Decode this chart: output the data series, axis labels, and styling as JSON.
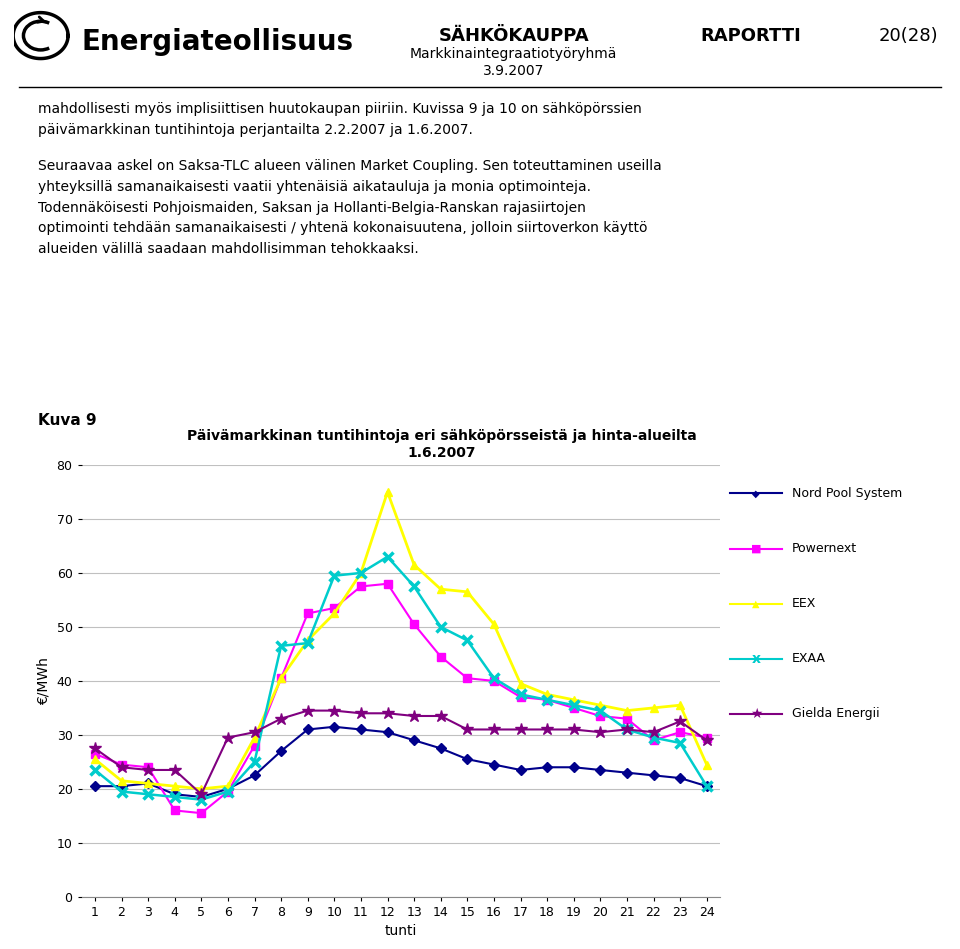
{
  "title_line1": "Päivämarkkinan tuntihintoja eri sähköpörsseistä ja hinta-alueilta",
  "title_line2": "1.6.2007",
  "xlabel": "tunti",
  "ylabel": "€/MWh",
  "ylim": [
    0,
    80
  ],
  "yticks": [
    0,
    10,
    20,
    30,
    40,
    50,
    60,
    70,
    80
  ],
  "xticks": [
    1,
    2,
    3,
    4,
    5,
    6,
    7,
    8,
    9,
    10,
    11,
    12,
    13,
    14,
    15,
    16,
    17,
    18,
    19,
    20,
    21,
    22,
    23,
    24
  ],
  "series": {
    "Nord Pool System": {
      "color": "#00008B",
      "marker": "D",
      "markersize": 5,
      "linewidth": 1.5,
      "values": [
        20.5,
        20.5,
        21.0,
        19.0,
        18.5,
        20.0,
        22.5,
        27.0,
        31.0,
        31.5,
        31.0,
        30.5,
        29.0,
        27.5,
        25.5,
        24.5,
        23.5,
        24.0,
        24.0,
        23.5,
        23.0,
        22.5,
        22.0,
        20.5
      ]
    },
    "Powernext": {
      "color": "#FF00FF",
      "marker": "s",
      "markersize": 6,
      "linewidth": 1.5,
      "values": [
        26.5,
        24.5,
        24.0,
        16.0,
        15.5,
        19.5,
        28.0,
        40.5,
        52.5,
        53.5,
        57.5,
        58.0,
        50.5,
        44.5,
        40.5,
        40.0,
        37.0,
        36.5,
        35.0,
        33.5,
        33.0,
        29.0,
        30.5,
        29.5
      ]
    },
    "EEX": {
      "color": "#FFFF00",
      "marker": "^",
      "markersize": 6,
      "linewidth": 2.0,
      "values": [
        25.5,
        21.5,
        21.0,
        20.5,
        20.0,
        20.5,
        29.5,
        40.5,
        47.5,
        52.5,
        60.0,
        75.0,
        61.5,
        57.0,
        56.5,
        50.5,
        39.5,
        37.5,
        36.5,
        35.5,
        34.5,
        35.0,
        35.5,
        24.5
      ]
    },
    "EXAA": {
      "color": "#00CCCC",
      "marker": "x",
      "markersize": 7,
      "linewidth": 1.8,
      "values": [
        23.5,
        19.5,
        19.0,
        18.5,
        18.0,
        19.5,
        25.0,
        46.5,
        47.0,
        59.5,
        60.0,
        63.0,
        57.5,
        50.0,
        47.5,
        40.5,
        37.5,
        36.5,
        35.5,
        34.5,
        31.0,
        29.5,
        28.5,
        20.5
      ]
    },
    "Gielda Energii": {
      "color": "#800080",
      "marker": "*",
      "markersize": 9,
      "linewidth": 1.5,
      "values": [
        27.5,
        24.0,
        23.5,
        23.5,
        19.0,
        29.5,
        30.5,
        33.0,
        34.5,
        34.5,
        34.0,
        34.0,
        33.5,
        33.5,
        31.0,
        31.0,
        31.0,
        31.0,
        31.0,
        30.5,
        31.0,
        30.5,
        32.5,
        29.0
      ]
    }
  },
  "header_center_title": "SÄHKÖKAUPPA",
  "header_right1": "RAPORTTI",
  "header_right2": "20(28)",
  "header_sub1": "Markkinaintegraatiotyöryhmä",
  "header_sub2": "3.9.2007",
  "body_line1": "mahdollisesti myös implisiittisen huutokaupan piiriin. Kuvissa 9 ja 10 on sähköpörssien",
  "body_line2": "päivämarkkinan tuntihintoja perjantailta 2.2.2007 ja 1.6.2007.",
  "body_line3": "Seuraavaa askel on Saksa-TLC alueen välinen Market Coupling. Sen toteuttaminen useilla",
  "body_line4": "yhteyksillä samanaikaisesti vaatii yhtenäisiä aikatauluja ja monia optimointeja.",
  "body_line5": "Todennäköisesti Pohjoismaiden, Saksan ja Hollanti-Belgia-Ranskan rajasiirtojen",
  "body_line6": "optimointi tehdään samanaikaisesti / yhtenä kokonaisuutena, jolloin siirtoverkon käyttö",
  "body_line7": "alueiden välillä saadaan mahdollisimman tehokkaaksi.",
  "kuva_label": "Kuva 9",
  "company_name": "Energiateollisuus",
  "background_color": "#FFFFFF",
  "plot_bg_color": "#FFFFFF",
  "grid_color": "#C0C0C0"
}
